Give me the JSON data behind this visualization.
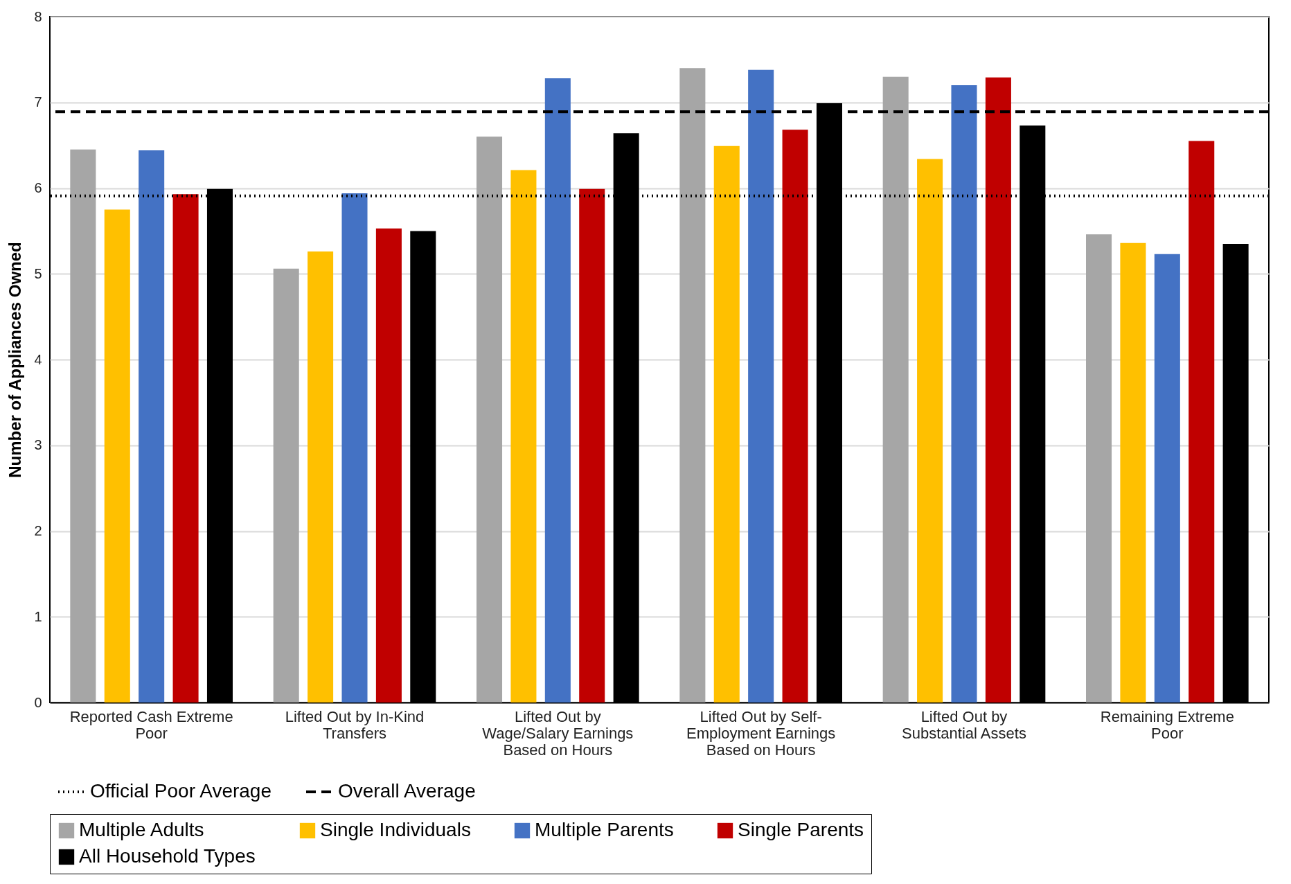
{
  "chart_data": {
    "type": "bar",
    "ylabel": "Number of Appliances Owned",
    "categories": [
      "Reported Cash Extreme Poor",
      "Lifted Out by In-Kind Transfers",
      "Lifted Out by Wage/Salary Earnings Based on Hours",
      "Lifted Out by Self-Employment Earnings Based on Hours",
      "Lifted Out by Substantial Assets",
      "Remaining Extreme Poor"
    ],
    "series": [
      {
        "name": "Multiple Adults",
        "color": "#a6a6a6",
        "values": [
          6.45,
          5.06,
          6.6,
          7.4,
          7.3,
          5.46
        ]
      },
      {
        "name": "Single Individuals",
        "color": "#ffc000",
        "values": [
          5.75,
          5.26,
          6.21,
          6.49,
          6.34,
          5.36
        ]
      },
      {
        "name": "Multiple Parents",
        "color": "#4472c4",
        "values": [
          6.44,
          5.94,
          7.28,
          7.38,
          7.2,
          5.23
        ]
      },
      {
        "name": "Single Parents",
        "color": "#c00000",
        "values": [
          5.93,
          5.53,
          5.99,
          6.68,
          7.29,
          6.55
        ]
      },
      {
        "name": "All Household Types",
        "color": "#000000",
        "values": [
          5.99,
          5.5,
          6.64,
          6.99,
          6.73,
          5.35
        ]
      }
    ],
    "ref_lines": [
      {
        "axis": "y",
        "value": 5.91,
        "label": "Official Poor Average",
        "color": "#000000",
        "line_style": "dotted"
      },
      {
        "axis": "y",
        "value": 6.89,
        "label": "Overall Average",
        "color": "#000000",
        "line_style": "dashed"
      }
    ],
    "ylim": [
      0,
      8
    ],
    "yticks": [
      0,
      1,
      2,
      3,
      4,
      5,
      6,
      7,
      8
    ],
    "grid": "y",
    "legend": "bottom"
  }
}
